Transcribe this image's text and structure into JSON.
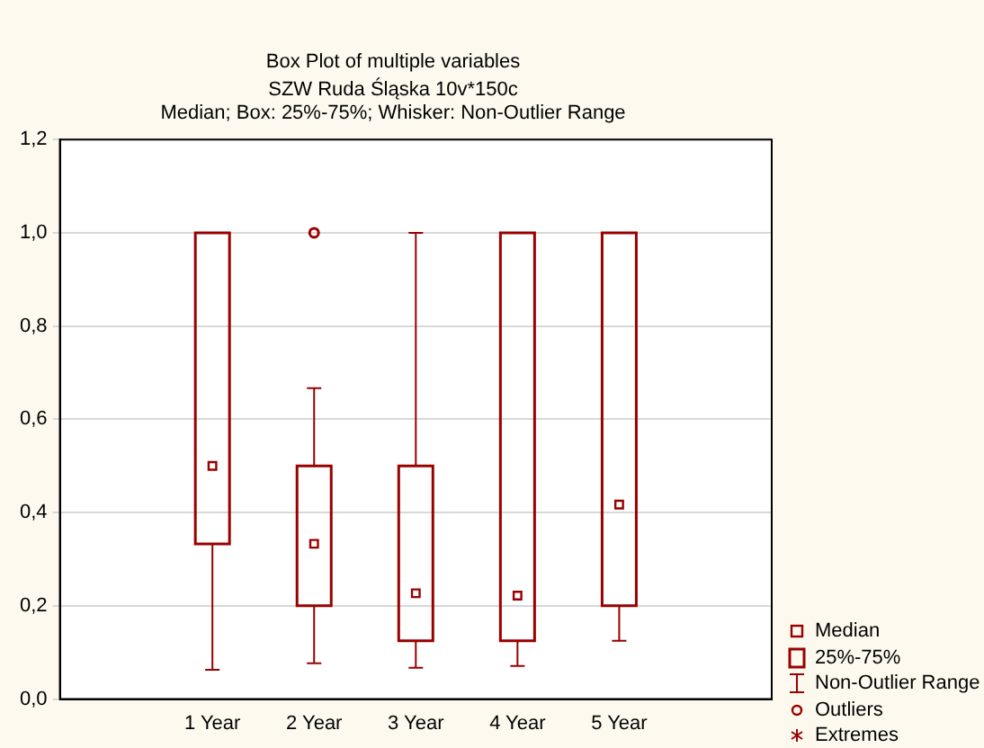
{
  "chart_data": {
    "type": "box",
    "title": "Box Plot of multiple variables",
    "subtitle": "SZW Ruda Śląska 10v*150c",
    "annotations": [
      "Median; Box: 25%-75%; Whisker: Non-Outlier Range",
      "Median",
      "25%-75%",
      "Non-Outlier Range",
      "Outliers",
      "Extremes"
    ],
    "categories": [
      null,
      "1 Year",
      "2 Year",
      "3 Year",
      "4 Year",
      "5 Year",
      null
    ],
    "color": "#990000",
    "boxes": [
      null,
      {
        "low": 0.063,
        "q1": 0.333,
        "median": 0.5,
        "q3": 1.0,
        "high": 1.0
      },
      {
        "low": 0.077,
        "q1": 0.2,
        "median": 0.333,
        "q3": 0.5,
        "high": 0.667,
        "outliers": [
          1.0
        ]
      },
      {
        "low": 0.067,
        "q1": 0.125,
        "median": 0.227,
        "q3": 0.5,
        "high": 1.0
      },
      {
        "low": 0.071,
        "q1": 0.125,
        "median": 0.222,
        "q3": 1.0,
        "high": 1.0
      },
      {
        "low": 0.125,
        "q1": 0.2,
        "median": 0.417,
        "q3": 1.0,
        "high": 1.0
      },
      null
    ],
    "ylim": [
      0,
      1.2
    ],
    "yticks": [
      {
        "value": 0,
        "label": "0,0"
      },
      {
        "value": 0.2,
        "label": "0,2"
      },
      {
        "value": 0.4,
        "label": "0,4"
      },
      {
        "value": 0.6,
        "label": "0,6"
      },
      {
        "value": 0.8,
        "label": "0,8"
      },
      {
        "value": 1.0,
        "label": "1,0"
      },
      {
        "value": 1.2,
        "label": "1,2"
      }
    ],
    "grid": "y",
    "marker": "square"
  }
}
